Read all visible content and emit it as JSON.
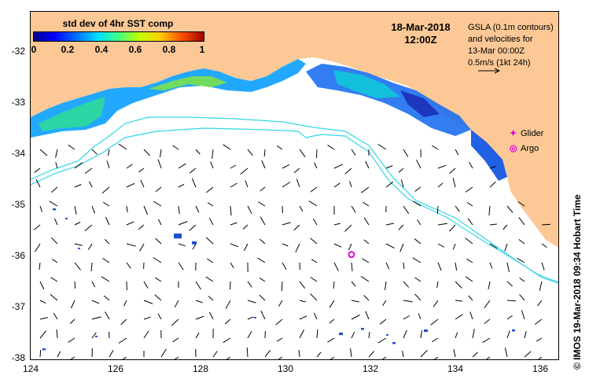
{
  "colorbar": {
    "title": "std dev of 4hr SST comp",
    "ticks": [
      "0",
      "0.2",
      "0.4",
      "0.6",
      "0.8",
      "1"
    ]
  },
  "date": {
    "day": "18-Mar-2018",
    "time": "12:00Z"
  },
  "gsla": {
    "line1": "GSLA (0.1m contours)",
    "line2": "and velocities for",
    "line3": "13-Mar 00:00Z",
    "line4": "0.5m/s (1kt 24h)"
  },
  "legend": {
    "glider_label": "Glider",
    "argo_label": "Argo",
    "glider_symbol": "✦",
    "argo_symbol": "◎"
  },
  "axes": {
    "x_ticks": [
      "124",
      "126",
      "128",
      "130",
      "132",
      "134",
      "136"
    ],
    "y_ticks": [
      "-32",
      "-33",
      "-34",
      "-35",
      "-36",
      "-37",
      "-38"
    ],
    "lon_range": [
      124,
      136.5
    ],
    "lat_range": [
      -31.3,
      -38.1
    ]
  },
  "credit": "©  IMOS 19-Mar-2018 09:34 Hobart Time",
  "colors": {
    "land": "#fbc896",
    "contour": "#33d6e6",
    "argo": "#e000e0",
    "vectors": "#000000"
  },
  "argo_float": {
    "lon": 131.6,
    "lat": -36.05
  }
}
